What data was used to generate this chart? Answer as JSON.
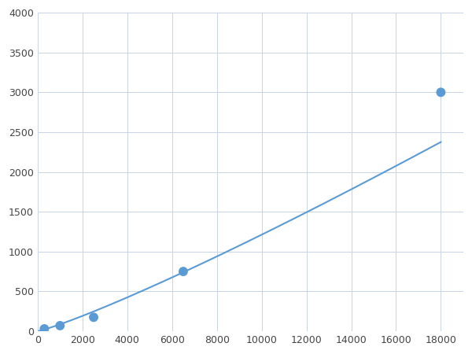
{
  "x_points": [
    300,
    1000,
    2500,
    6500,
    18000
  ],
  "y_points": [
    30,
    70,
    175,
    750,
    3000
  ],
  "line_color": "#5B9BD5",
  "marker_color": "#5B9BD5",
  "marker_size": 7,
  "line_width": 1.5,
  "xlim": [
    0,
    19000
  ],
  "ylim": [
    0,
    4000
  ],
  "xticks": [
    0,
    2000,
    4000,
    6000,
    8000,
    10000,
    12000,
    14000,
    16000,
    18000
  ],
  "yticks": [
    0,
    500,
    1000,
    1500,
    2000,
    2500,
    3000,
    3500,
    4000
  ],
  "grid_color": "#C8D4E3",
  "background_color": "#FFFFFF",
  "figsize": [
    6.0,
    4.5
  ],
  "dpi": 100
}
